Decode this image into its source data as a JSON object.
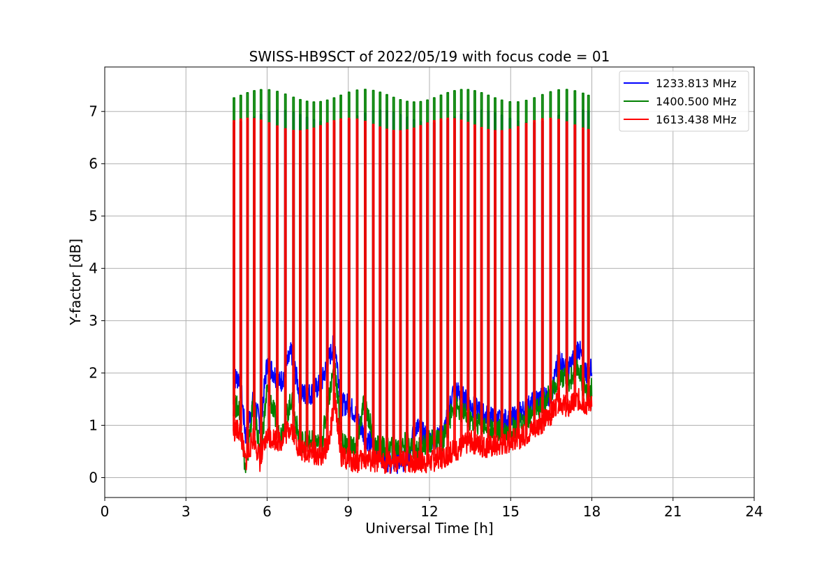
{
  "chart_data": {
    "type": "line",
    "title": "SWISS-HB9SCT of 2022/05/19 with focus code = 01",
    "xlabel": "Universal Time [h]",
    "ylabel": "Y-factor [dB]",
    "xlim": [
      0,
      24
    ],
    "ylim": [
      -0.38,
      7.85
    ],
    "xticks": [
      0,
      3,
      6,
      9,
      12,
      15,
      18,
      21,
      24
    ],
    "yticks": [
      0,
      1,
      2,
      3,
      4,
      5,
      6,
      7
    ],
    "grid": true,
    "legend_position": "top-right",
    "series": [
      {
        "name": "1233.813 MHz",
        "color": "#0000ff",
        "spike_peak": 6.9,
        "baseline": [
          [
            4.75,
            1.9
          ],
          [
            5.0,
            1.9
          ],
          [
            5.2,
            0.8
          ],
          [
            5.5,
            1.5
          ],
          [
            5.75,
            1.0
          ],
          [
            6.0,
            2.2
          ],
          [
            6.5,
            1.8
          ],
          [
            6.9,
            2.4
          ],
          [
            7.2,
            1.6
          ],
          [
            7.6,
            1.6
          ],
          [
            8.0,
            1.8
          ],
          [
            8.3,
            2.3
          ],
          [
            8.5,
            2.6
          ],
          [
            8.75,
            1.4
          ],
          [
            9.0,
            1.4
          ],
          [
            9.3,
            1.2
          ],
          [
            9.6,
            0.8
          ],
          [
            10.0,
            0.55
          ],
          [
            10.5,
            0.3
          ],
          [
            11.0,
            0.3
          ],
          [
            11.2,
            0.4
          ],
          [
            11.5,
            1.0
          ],
          [
            12.0,
            0.7
          ],
          [
            12.5,
            0.8
          ],
          [
            12.9,
            1.7
          ],
          [
            13.5,
            1.4
          ],
          [
            14.0,
            1.2
          ],
          [
            14.5,
            1.1
          ],
          [
            15.0,
            1.1
          ],
          [
            15.5,
            1.3
          ],
          [
            16.0,
            1.5
          ],
          [
            16.5,
            1.6
          ],
          [
            16.8,
            2.3
          ],
          [
            17.1,
            2.0
          ],
          [
            17.5,
            2.5
          ],
          [
            17.8,
            2.0
          ],
          [
            18.0,
            2.1
          ]
        ]
      },
      {
        "name": "1400.500 MHz",
        "color": "#008000",
        "spike_peak": 7.3,
        "baseline": [
          [
            4.75,
            1.4
          ],
          [
            5.0,
            1.3
          ],
          [
            5.2,
            0.1
          ],
          [
            5.5,
            1.5
          ],
          [
            5.75,
            0.4
          ],
          [
            6.0,
            1.7
          ],
          [
            6.5,
            0.8
          ],
          [
            6.9,
            1.5
          ],
          [
            7.2,
            0.7
          ],
          [
            7.6,
            0.7
          ],
          [
            8.0,
            0.6
          ],
          [
            8.3,
            1.6
          ],
          [
            8.5,
            2.2
          ],
          [
            8.75,
            0.7
          ],
          [
            9.0,
            0.6
          ],
          [
            9.3,
            0.6
          ],
          [
            9.6,
            1.5
          ],
          [
            10.0,
            0.6
          ],
          [
            10.5,
            0.55
          ],
          [
            11.0,
            0.6
          ],
          [
            11.2,
            0.7
          ],
          [
            11.5,
            0.5
          ],
          [
            12.0,
            0.7
          ],
          [
            12.5,
            0.7
          ],
          [
            12.9,
            1.4
          ],
          [
            13.5,
            1.1
          ],
          [
            14.0,
            1.0
          ],
          [
            14.5,
            0.9
          ],
          [
            15.0,
            0.9
          ],
          [
            15.5,
            1.1
          ],
          [
            16.0,
            1.3
          ],
          [
            16.5,
            1.6
          ],
          [
            16.8,
            2.0
          ],
          [
            17.1,
            1.8
          ],
          [
            17.5,
            2.1
          ],
          [
            17.8,
            1.6
          ],
          [
            18.0,
            1.7
          ]
        ]
      },
      {
        "name": "1613.438 MHz",
        "color": "#ff0000",
        "spike_peak": 6.75,
        "baseline": [
          [
            4.75,
            0.9
          ],
          [
            5.0,
            0.9
          ],
          [
            5.2,
            0.3
          ],
          [
            5.5,
            0.8
          ],
          [
            5.75,
            0.3
          ],
          [
            6.0,
            0.8
          ],
          [
            6.5,
            0.7
          ],
          [
            6.9,
            1.0
          ],
          [
            7.2,
            0.5
          ],
          [
            7.6,
            0.5
          ],
          [
            8.0,
            0.4
          ],
          [
            8.3,
            0.7
          ],
          [
            8.5,
            1.5
          ],
          [
            8.75,
            0.4
          ],
          [
            9.0,
            0.35
          ],
          [
            9.3,
            0.3
          ],
          [
            9.6,
            0.35
          ],
          [
            10.0,
            0.3
          ],
          [
            10.5,
            0.3
          ],
          [
            11.0,
            0.3
          ],
          [
            11.2,
            0.3
          ],
          [
            11.5,
            0.3
          ],
          [
            12.0,
            0.3
          ],
          [
            12.5,
            0.4
          ],
          [
            12.9,
            0.5
          ],
          [
            13.5,
            0.7
          ],
          [
            14.0,
            0.6
          ],
          [
            14.5,
            0.6
          ],
          [
            15.0,
            0.7
          ],
          [
            15.5,
            0.8
          ],
          [
            16.0,
            1.0
          ],
          [
            16.5,
            1.2
          ],
          [
            16.8,
            1.5
          ],
          [
            17.1,
            1.3
          ],
          [
            17.5,
            1.5
          ],
          [
            17.8,
            1.4
          ],
          [
            18.0,
            1.5
          ]
        ]
      }
    ],
    "spike_times": [
      4.75,
      5.0,
      5.25,
      5.5,
      5.75,
      6.05,
      6.35,
      6.65,
      6.95,
      7.2,
      7.45,
      7.7,
      7.95,
      8.2,
      8.45,
      8.7,
      9.0,
      9.3,
      9.6,
      9.9,
      10.15,
      10.4,
      10.65,
      10.9,
      11.15,
      11.4,
      11.65,
      11.9,
      12.15,
      12.4,
      12.65,
      12.9,
      13.15,
      13.4,
      13.65,
      13.9,
      14.15,
      14.4,
      14.65,
      14.95,
      15.25,
      15.55,
      15.85,
      16.15,
      16.45,
      16.75,
      17.05,
      17.35,
      17.65,
      17.85
    ]
  }
}
